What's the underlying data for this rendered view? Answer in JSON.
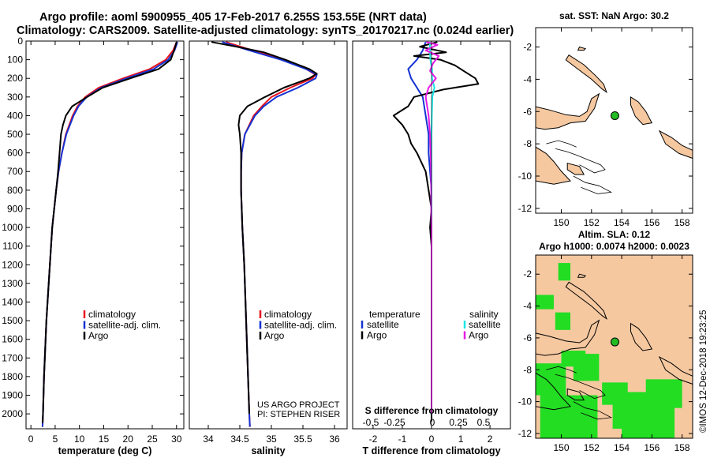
{
  "title": {
    "line1": "Argo profile: aoml 5900955_405 17-Feb-2017 6.255S 153.55E (NRT data)",
    "line2": "Climatology: CARS2009. Satellite-adjusted climatology: synTS_20170217.nc (0.024d earlier)"
  },
  "footer": {
    "timestamp": "©IMOS 12-Dec-2018 19:23:25",
    "project": "US ARGO PROJECT",
    "pi": "PI: STEPHEN RISER"
  },
  "colors": {
    "climatology": "#e8141e",
    "satellite": "#1432d2",
    "argo": "#000000",
    "sat_salinity": "#19e6e6",
    "argo_salinity": "#e619e6",
    "land": "#f5c8a0",
    "sla_green": "#22dd22",
    "marker": "#22bb22"
  },
  "chart_data": [
    {
      "type": "line",
      "id": "temperature",
      "xlabel": "temperature (deg C)",
      "ylabel": "depth",
      "xlim": [
        -1,
        31.5
      ],
      "ylim": [
        2080,
        0
      ],
      "xticks": [
        0,
        5,
        10,
        15,
        20,
        25,
        30
      ],
      "yticks": [
        0,
        100,
        200,
        300,
        400,
        500,
        600,
        700,
        800,
        900,
        1000,
        1100,
        1200,
        1300,
        1400,
        1500,
        1600,
        1700,
        1800,
        1900,
        2000
      ],
      "legend": [
        "climatology",
        "satellite-adj. clim.",
        "Argo"
      ],
      "series": [
        {
          "name": "climatology",
          "color_key": "climatology",
          "depth": [
            5,
            50,
            100,
            150,
            200,
            250,
            300,
            350,
            400,
            500,
            600,
            700,
            800,
            1000,
            1200,
            1500,
            1800,
            2000,
            2070
          ],
          "values": [
            30.0,
            29.3,
            27.8,
            24.5,
            19.0,
            14.0,
            11.2,
            9.6,
            8.6,
            7.2,
            6.4,
            5.7,
            5.2,
            4.4,
            3.9,
            3.2,
            2.7,
            2.5,
            2.4
          ]
        },
        {
          "name": "satellite-adj. clim.",
          "color_key": "satellite",
          "depth": [
            5,
            50,
            100,
            150,
            200,
            250,
            300,
            350,
            400,
            500,
            600,
            700,
            800,
            1000,
            1200,
            1500,
            1800,
            2000,
            2070
          ],
          "values": [
            30.2,
            29.6,
            28.3,
            25.3,
            19.7,
            14.5,
            11.5,
            9.8,
            8.8,
            7.3,
            6.4,
            5.7,
            5.2,
            4.4,
            3.9,
            3.2,
            2.7,
            2.5,
            2.4
          ]
        },
        {
          "name": "Argo",
          "color_key": "argo",
          "depth": [
            5,
            50,
            100,
            150,
            200,
            250,
            300,
            350,
            400,
            450,
            500,
            600,
            700,
            800,
            1000,
            1200,
            1500,
            1800,
            2000,
            2050
          ],
          "values": [
            30.0,
            29.5,
            28.8,
            26.3,
            20.5,
            14.8,
            11.6,
            8.5,
            7.2,
            6.6,
            6.2,
            5.9,
            5.6,
            5.2,
            4.4,
            3.9,
            3.2,
            2.7,
            2.5,
            2.4
          ]
        }
      ]
    },
    {
      "type": "line",
      "id": "salinity",
      "xlabel": "salinity",
      "xlim": [
        33.7,
        36.2
      ],
      "ylim": [
        2080,
        0
      ],
      "xticks": [
        34,
        34.5,
        35,
        35.5,
        36
      ],
      "legend": [
        "climatology",
        "satellite-adj. clim.",
        "Argo"
      ],
      "series": [
        {
          "name": "climatology",
          "color_key": "climatology",
          "depth": [
            5,
            50,
            100,
            150,
            180,
            200,
            250,
            300,
            350,
            400,
            500,
            600,
            700,
            800,
            1000,
            1200,
            1500,
            1800,
            2000,
            2070
          ],
          "values": [
            34.28,
            34.7,
            35.2,
            35.55,
            35.7,
            35.65,
            35.3,
            35.0,
            34.85,
            34.72,
            34.58,
            34.53,
            34.52,
            34.52,
            34.54,
            34.57,
            34.6,
            34.63,
            34.65,
            34.66
          ]
        },
        {
          "name": "satellite-adj. clim.",
          "color_key": "satellite",
          "depth": [
            5,
            50,
            100,
            150,
            180,
            200,
            250,
            300,
            350,
            400,
            500,
            600,
            700,
            800,
            1000,
            1200,
            1500,
            1800,
            2000,
            2070
          ],
          "values": [
            34.22,
            34.65,
            35.15,
            35.55,
            35.72,
            35.7,
            35.42,
            35.08,
            34.88,
            34.74,
            34.58,
            34.53,
            34.52,
            34.52,
            34.54,
            34.57,
            34.6,
            34.63,
            34.65,
            34.66
          ]
        },
        {
          "name": "Argo",
          "color_key": "argo",
          "depth": [
            5,
            30,
            60,
            100,
            150,
            175,
            200,
            250,
            300,
            350,
            400,
            450,
            500,
            600,
            700,
            800,
            1000,
            1200,
            1500,
            1800,
            2000
          ],
          "values": [
            34.05,
            34.45,
            34.88,
            35.22,
            35.6,
            35.72,
            35.6,
            35.2,
            34.9,
            34.62,
            34.5,
            34.48,
            34.5,
            34.52,
            34.52,
            34.52,
            34.54,
            34.57,
            34.6,
            34.63,
            34.65
          ]
        }
      ]
    },
    {
      "type": "line",
      "id": "difference",
      "xlabel": "T difference from climatology",
      "x2label": "S difference from climatology",
      "xlim": [
        -2.7,
        2.7
      ],
      "ylim": [
        2080,
        0
      ],
      "xticks": [
        -2,
        -1,
        0,
        1,
        2
      ],
      "x2ticks": [
        -0.5,
        -0.25,
        0,
        0.25,
        0.5
      ],
      "x2ticklabels": [
        "-0.5",
        "-0.25",
        "0",
        "0.25",
        "0.5"
      ],
      "legend_temperature_title": "temperature",
      "legend_salinity_title": "salinity",
      "legend": [
        "satellite",
        "Argo"
      ],
      "series": [
        {
          "name": "T satellite",
          "color_key": "satellite",
          "depth": [
            5,
            50,
            100,
            150,
            200,
            250,
            300,
            400,
            500,
            600,
            800,
            1000,
            1500,
            2000
          ],
          "values": [
            -0.2,
            -0.3,
            -0.5,
            -0.8,
            -0.7,
            -0.5,
            -0.3,
            -0.2,
            -0.1,
            -0.1,
            0,
            0,
            0,
            0
          ]
        },
        {
          "name": "T Argo",
          "color_key": "argo",
          "depth": [
            5,
            30,
            60,
            80,
            100,
            130,
            160,
            200,
            230,
            260,
            300,
            350,
            400,
            450,
            500,
            550,
            600,
            700,
            800,
            900,
            1000,
            1100,
            1200,
            1400,
            1600,
            1800,
            2000,
            2040
          ],
          "values": [
            0.2,
            -0.4,
            0.5,
            -0.6,
            0.3,
            0.8,
            1.1,
            1.5,
            1.6,
            0.4,
            -0.6,
            -0.8,
            -1.3,
            -1.0,
            -0.8,
            -0.7,
            -0.5,
            -0.2,
            -0.1,
            0,
            -0.05,
            0,
            0,
            0,
            0,
            0,
            0,
            0
          ]
        },
        {
          "name": "S satellite",
          "color_key": "sat_salinity",
          "depth": [
            5,
            50,
            100,
            150,
            200,
            250,
            300,
            400,
            500,
            700,
            1000,
            1500,
            2000
          ],
          "values": [
            -0.06,
            -0.05,
            -0.04,
            0.02,
            0.02,
            0.1,
            0.03,
            0.01,
            0,
            0,
            0,
            0,
            0
          ]
        },
        {
          "name": "S Argo",
          "color_key": "argo_salinity",
          "depth": [
            5,
            20,
            50,
            80,
            120,
            160,
            200,
            250,
            300,
            400,
            500,
            600,
            700,
            800,
            900,
            1000,
            1500,
            2000
          ],
          "values": [
            -0.18,
            0.2,
            -0.2,
            0.25,
            0.05,
            -0.05,
            0.15,
            -0.1,
            -0.2,
            -0.1,
            -0.05,
            -0.03,
            -0.02,
            -0.01,
            -0.01,
            0,
            0,
            0
          ]
        }
      ]
    },
    {
      "type": "map",
      "id": "sst_map",
      "title": "sat. SST: NaN Argo: 30.2",
      "xlim": [
        148.3,
        158.7
      ],
      "ylim": [
        -12.3,
        -0.8
      ],
      "xticks": [
        150,
        152,
        154,
        156,
        158
      ],
      "yticks": [
        -2,
        -4,
        -6,
        -8,
        -10,
        -12
      ],
      "profile_location": {
        "lon": 153.55,
        "lat": -6.255
      }
    },
    {
      "type": "map",
      "id": "sla_map",
      "title": "Altim. SLA: 0.12",
      "subtitle": "Argo h1000: 0.0074 h2000: 0.0023",
      "xlim": [
        148.3,
        158.7
      ],
      "ylim": [
        -12.3,
        -0.8
      ],
      "xticks": [
        150,
        152,
        154,
        156,
        158
      ],
      "yticks": [
        -2,
        -4,
        -6,
        -8,
        -10,
        -12
      ],
      "profile_location": {
        "lon": 153.55,
        "lat": -6.255
      }
    }
  ]
}
